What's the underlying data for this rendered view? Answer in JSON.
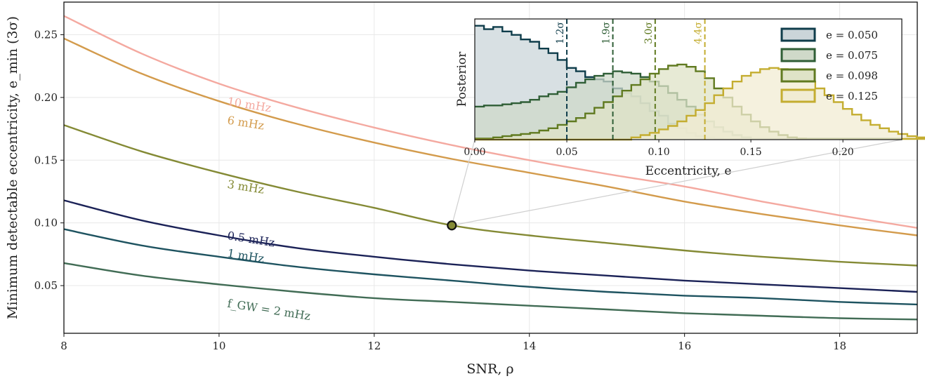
{
  "chart_data": [
    {
      "type": "line",
      "xlabel": "SNR, ρ",
      "ylabel": "Minimum detectable eccentricity, e_min (3σ)",
      "xlim": [
        8,
        19
      ],
      "ylim": [
        0.012,
        0.276
      ],
      "xticks": [
        "8",
        "10",
        "12",
        "14",
        "16",
        "18"
      ],
      "yticks": [
        "0.05",
        "0.10",
        "0.15",
        "0.20",
        "0.25"
      ],
      "grid": true,
      "x": [
        8,
        9,
        10,
        11,
        12,
        13,
        14,
        15,
        16,
        17,
        18,
        19
      ],
      "series": [
        {
          "name": "10 mHz",
          "color": "#f4a9a0",
          "values": [
            0.265,
            0.235,
            0.211,
            0.192,
            0.176,
            0.162,
            0.15,
            0.139,
            0.129,
            0.117,
            0.106,
            0.096
          ]
        },
        {
          "name": "6 mHz",
          "color": "#d39b4c",
          "values": [
            0.247,
            0.219,
            0.197,
            0.179,
            0.164,
            0.151,
            0.14,
            0.129,
            0.117,
            0.107,
            0.098,
            0.09
          ]
        },
        {
          "name": "3 mHz",
          "color": "#848a35",
          "values": [
            0.178,
            0.157,
            0.14,
            0.125,
            0.112,
            0.098,
            0.09,
            0.084,
            0.078,
            0.073,
            0.069,
            0.066
          ]
        },
        {
          "name": "0.5 mHz",
          "color": "#1b2257",
          "values": [
            0.118,
            0.102,
            0.09,
            0.08,
            0.073,
            0.067,
            0.062,
            0.058,
            0.054,
            0.051,
            0.048,
            0.045
          ]
        },
        {
          "name": "1 mHz",
          "color": "#1e5360",
          "values": [
            0.095,
            0.082,
            0.073,
            0.065,
            0.059,
            0.054,
            0.049,
            0.045,
            0.042,
            0.04,
            0.037,
            0.035
          ]
        },
        {
          "name": "f_GW = 2 mHz",
          "color": "#416c55",
          "values": [
            0.068,
            0.058,
            0.051,
            0.045,
            0.04,
            0.037,
            0.034,
            0.031,
            0.028,
            0.026,
            0.024,
            0.023
          ]
        }
      ],
      "annotations": [
        {
          "text": "10 mHz",
          "x": 10.1,
          "y": 0.194,
          "color": "#f4a9a0"
        },
        {
          "text": "6 mHz",
          "x": 10.1,
          "y": 0.179,
          "color": "#d39b4c"
        },
        {
          "text": "3 mHz",
          "x": 10.1,
          "y": 0.128,
          "color": "#848a35"
        },
        {
          "text": "0.5 mHz",
          "x": 10.1,
          "y": 0.087,
          "color": "#1b2257"
        },
        {
          "text": "1 mHz",
          "x": 10.1,
          "y": 0.073,
          "color": "#1e5360"
        },
        {
          "text": "f_GW = 2 mHz",
          "x": 10.1,
          "y": 0.033,
          "color": "#416c55"
        }
      ],
      "highlight_point": {
        "x": 13,
        "y": 0.098,
        "color": "#848a35"
      }
    },
    {
      "type": "histogram",
      "xlabel": "Eccentricity, e",
      "ylabel": "Posterior",
      "xlim": [
        0,
        0.232
      ],
      "ylim": [
        0,
        1.06
      ],
      "xticks": [
        "0.00",
        "0.05",
        "0.10",
        "0.15",
        "0.20"
      ],
      "legend": "top-right",
      "bin_width": 0.005,
      "series": [
        {
          "label": "e = 0.050",
          "line": "#0f3d4b",
          "fill": "#cbd5d9",
          "threshold": 0.05,
          "sigma": "1.2σ",
          "values": [
            1.0,
            0.97,
            0.99,
            0.95,
            0.92,
            0.88,
            0.86,
            0.8,
            0.76,
            0.7,
            0.63,
            0.6,
            0.55,
            0.53,
            0.51,
            0.45,
            0.41,
            0.38,
            0.32,
            0.25,
            0.21,
            0.14,
            0.1,
            0.06,
            0.03,
            0.02,
            0.01
          ]
        },
        {
          "label": "e = 0.075",
          "line": "#2f5e36",
          "fill": "#cfd9c9",
          "threshold": 0.075,
          "sigma": "1.9σ",
          "values": [
            0.29,
            0.3,
            0.3,
            0.31,
            0.32,
            0.33,
            0.35,
            0.38,
            0.4,
            0.42,
            0.46,
            0.5,
            0.53,
            0.56,
            0.58,
            0.6,
            0.59,
            0.58,
            0.55,
            0.51,
            0.47,
            0.41,
            0.35,
            0.29,
            0.22,
            0.16,
            0.11,
            0.07,
            0.04,
            0.02
          ]
        },
        {
          "label": "e = 0.098",
          "line": "#607a20",
          "fill": "#dfe3c7",
          "threshold": 0.098,
          "sigma": "3.0σ",
          "values": [
            0.01,
            0.01,
            0.02,
            0.03,
            0.04,
            0.05,
            0.06,
            0.08,
            0.1,
            0.13,
            0.16,
            0.19,
            0.23,
            0.28,
            0.33,
            0.38,
            0.43,
            0.48,
            0.53,
            0.58,
            0.62,
            0.65,
            0.66,
            0.64,
            0.6,
            0.54,
            0.45,
            0.37,
            0.29,
            0.22,
            0.16,
            0.11,
            0.07,
            0.04,
            0.02,
            0.01
          ]
        },
        {
          "label": "e = 0.125",
          "line": "#c4ad30",
          "fill": "#f1ecd3",
          "threshold": 0.125,
          "sigma": "4.4σ",
          "values": [
            0.0,
            0.0,
            0.0,
            0.0,
            0.0,
            0.0,
            0.0,
            0.0,
            0.0,
            0.0,
            0.0,
            0.0,
            0.0,
            0.0,
            0.0,
            0.0,
            0.0,
            0.02,
            0.04,
            0.06,
            0.09,
            0.12,
            0.16,
            0.21,
            0.26,
            0.32,
            0.39,
            0.45,
            0.51,
            0.56,
            0.59,
            0.62,
            0.63,
            0.62,
            0.6,
            0.56,
            0.51,
            0.45,
            0.39,
            0.33,
            0.27,
            0.22,
            0.17,
            0.13,
            0.1,
            0.07,
            0.05,
            0.03,
            0.02,
            0.01
          ]
        }
      ]
    }
  ]
}
